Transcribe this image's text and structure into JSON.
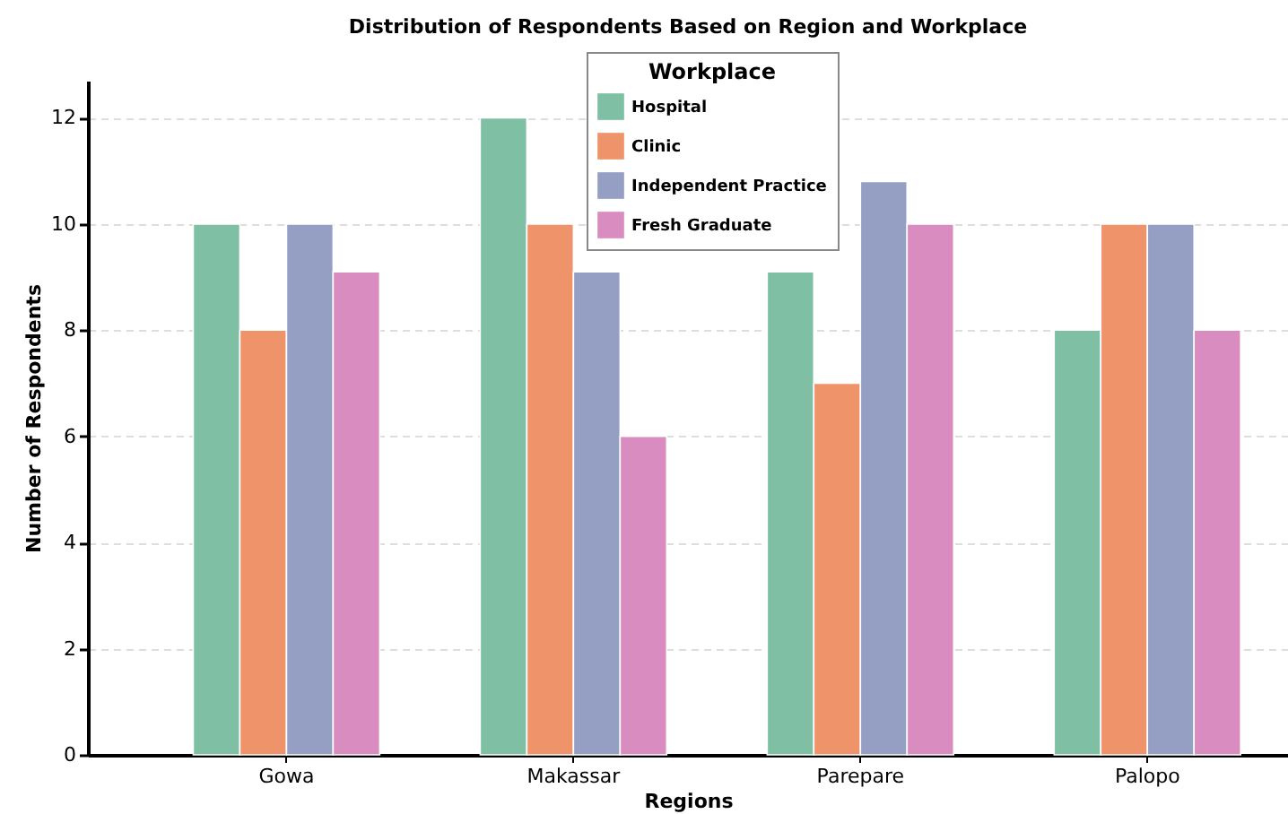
{
  "chart_data": {
    "type": "bar",
    "title": "Distribution of Respondents Based on Region and Workplace",
    "xlabel": "Regions",
    "ylabel": "Number of Respondents",
    "legend_title": "Workplace",
    "categories": [
      "Gowa",
      "Makassar",
      "Parepare",
      "Palopo"
    ],
    "series": [
      {
        "name": "Hospital",
        "color": "#7fbfa4",
        "values": [
          10,
          12,
          9.1,
          8
        ]
      },
      {
        "name": "Clinic",
        "color": "#ef936b",
        "values": [
          8,
          10,
          7,
          10
        ]
      },
      {
        "name": "Independent Practice",
        "color": "#959fc4",
        "values": [
          10,
          9.1,
          10.8,
          10
        ]
      },
      {
        "name": "Fresh Graduate",
        "color": "#d98cbf",
        "values": [
          9.1,
          6,
          10,
          8
        ]
      }
    ],
    "ylim": [
      0,
      12.7
    ],
    "yticks": [
      0,
      2,
      4,
      6,
      8,
      10,
      12
    ],
    "grid": "y",
    "legend": "top"
  }
}
